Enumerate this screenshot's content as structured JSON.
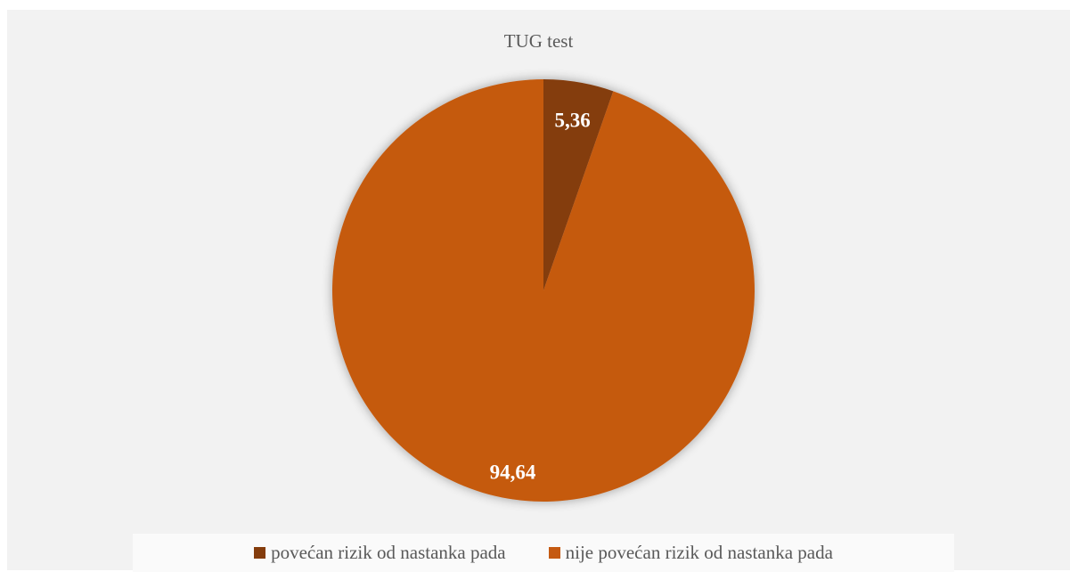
{
  "chart_data": {
    "type": "pie",
    "title": "TUG test",
    "categories": [
      "povećan rizik od nastanka pada",
      "nije povećan rizik od nastanka pada"
    ],
    "values": [
      5.36,
      94.64
    ],
    "value_labels": [
      "5,36",
      "94,64"
    ],
    "colors": [
      "#843c0c",
      "#c55a11"
    ],
    "start_angle_deg": 0,
    "direction": "clockwise",
    "legend_position": "bottom"
  }
}
